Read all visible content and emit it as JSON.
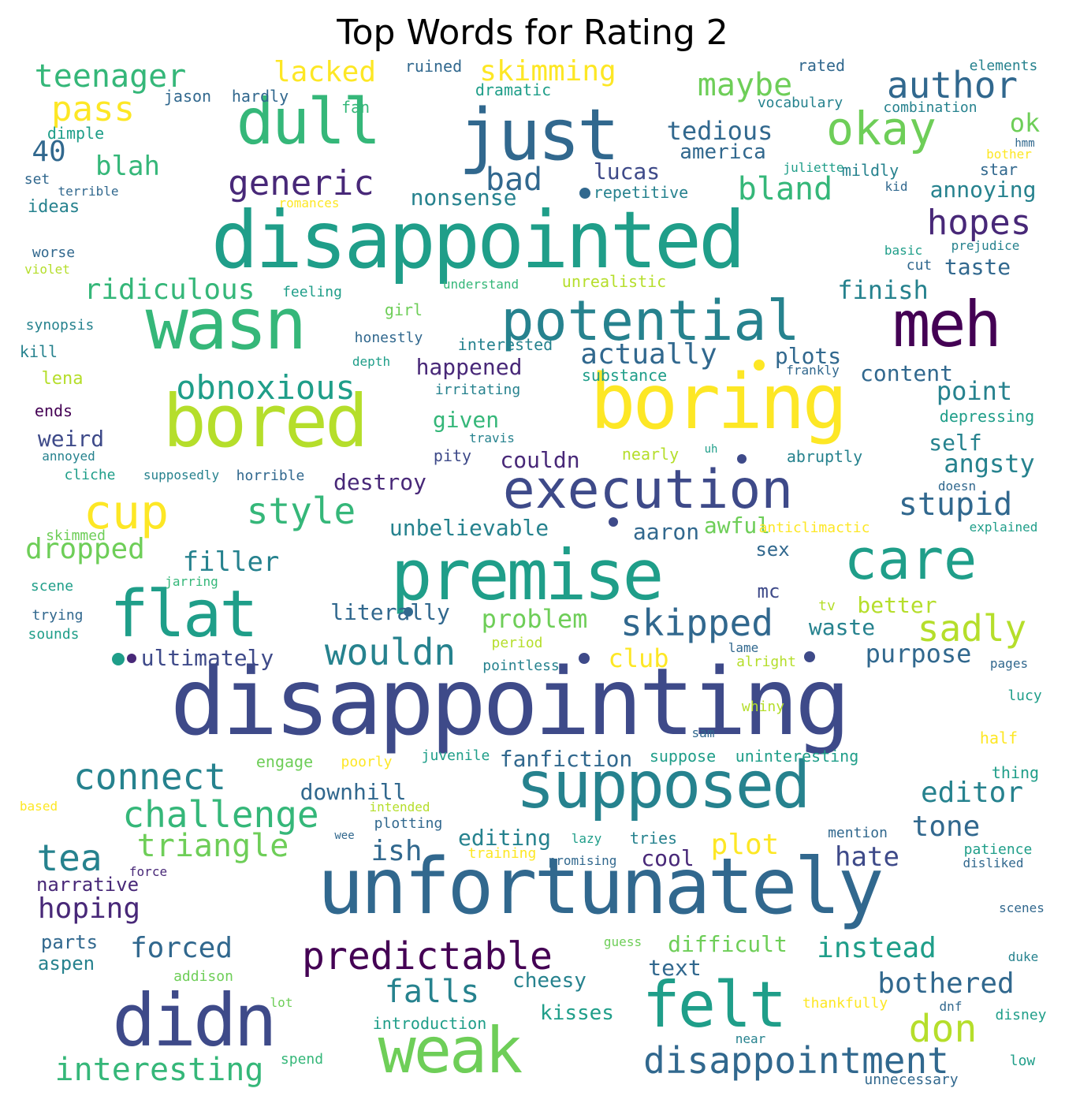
{
  "title": "Top Words for Rating 2",
  "colors": {
    "p1": "#440154",
    "p2": "#482878",
    "p3": "#3e4a89",
    "p4": "#31688e",
    "p5": "#26828e",
    "p6": "#1f9e89",
    "p7": "#35b779",
    "p8": "#6ece58",
    "p9": "#b5de2b",
    "p10": "#fde725",
    "bg": "#ffffff"
  },
  "words": [
    {
      "t": "disappointing",
      "c": "p3"
    },
    {
      "t": "disappointed",
      "c": "p6"
    },
    {
      "t": "unfortunately",
      "c": "p4"
    },
    {
      "t": "boring",
      "c": "p10"
    },
    {
      "t": "bored",
      "c": "p9"
    },
    {
      "t": "just",
      "c": "p4"
    },
    {
      "t": "dull",
      "c": "p7"
    },
    {
      "t": "wasn",
      "c": "p7"
    },
    {
      "t": "meh",
      "c": "p1"
    },
    {
      "t": "premise",
      "c": "p6"
    },
    {
      "t": "care",
      "c": "p6"
    },
    {
      "t": "flat",
      "c": "p6"
    },
    {
      "t": "didn",
      "c": "p3"
    },
    {
      "t": "felt",
      "c": "p6"
    },
    {
      "t": "weak",
      "c": "p8"
    },
    {
      "t": "supposed",
      "c": "p5"
    },
    {
      "t": "execution",
      "c": "p3"
    },
    {
      "t": "potential",
      "c": "p5"
    },
    {
      "t": "okay",
      "c": "p8"
    },
    {
      "t": "cup",
      "c": "p10"
    },
    {
      "t": "predictable",
      "c": "p1"
    },
    {
      "t": "disappointment",
      "c": "p4"
    },
    {
      "t": "author",
      "c": "p4"
    },
    {
      "t": "maybe",
      "c": "p8"
    },
    {
      "t": "pass",
      "c": "p10"
    },
    {
      "t": "generic",
      "c": "p2"
    },
    {
      "t": "bland",
      "c": "p7"
    },
    {
      "t": "hopes",
      "c": "p2"
    },
    {
      "t": "obnoxious",
      "c": "p6"
    },
    {
      "t": "style",
      "c": "p7"
    },
    {
      "t": "stupid",
      "c": "p4"
    },
    {
      "t": "skipped",
      "c": "p4"
    },
    {
      "t": "wouldn",
      "c": "p5"
    },
    {
      "t": "sadly",
      "c": "p9"
    },
    {
      "t": "challenge",
      "c": "p7"
    },
    {
      "t": "connect",
      "c": "p5"
    },
    {
      "t": "tea",
      "c": "p5"
    },
    {
      "t": "triangle",
      "c": "p8"
    },
    {
      "t": "falls",
      "c": "p5"
    },
    {
      "t": "don",
      "c": "p9"
    },
    {
      "t": "interesting",
      "c": "p7"
    },
    {
      "t": "bothered",
      "c": "p4"
    },
    {
      "t": "instead",
      "c": "p6"
    },
    {
      "t": "forced",
      "c": "p4"
    },
    {
      "t": "hoping",
      "c": "p2"
    },
    {
      "t": "ish",
      "c": "p4"
    },
    {
      "t": "plot",
      "c": "p10"
    },
    {
      "t": "editor",
      "c": "p5"
    },
    {
      "t": "tone",
      "c": "p4"
    },
    {
      "t": "hate",
      "c": "p3"
    },
    {
      "t": "teenager",
      "c": "p7"
    },
    {
      "t": "lacked",
      "c": "p10"
    },
    {
      "t": "skimming",
      "c": "p10"
    },
    {
      "t": "tedious",
      "c": "p4"
    },
    {
      "t": "ok",
      "c": "p8"
    },
    {
      "t": "40",
      "c": "p4"
    },
    {
      "t": "blah",
      "c": "p7"
    },
    {
      "t": "bad",
      "c": "p4"
    },
    {
      "t": "america",
      "c": "p4"
    },
    {
      "t": "lucas",
      "c": "p3"
    },
    {
      "t": "annoying",
      "c": "p5"
    },
    {
      "t": "nonsense",
      "c": "p5"
    },
    {
      "t": "ridiculous",
      "c": "p7"
    },
    {
      "t": "finish",
      "c": "p5"
    },
    {
      "t": "taste",
      "c": "p4"
    },
    {
      "t": "actually",
      "c": "p4"
    },
    {
      "t": "plots",
      "c": "p4"
    },
    {
      "t": "happened",
      "c": "p2"
    },
    {
      "t": "content",
      "c": "p4"
    },
    {
      "t": "point",
      "c": "p5"
    },
    {
      "t": "angsty",
      "c": "p5"
    },
    {
      "t": "self",
      "c": "p5"
    },
    {
      "t": "weird",
      "c": "p3"
    },
    {
      "t": "given",
      "c": "p7"
    },
    {
      "t": "couldn",
      "c": "p2"
    },
    {
      "t": "destroy",
      "c": "p2"
    },
    {
      "t": "dropped",
      "c": "p8"
    },
    {
      "t": "filler",
      "c": "p5"
    },
    {
      "t": "unbelievable",
      "c": "p5"
    },
    {
      "t": "aaron",
      "c": "p4"
    },
    {
      "t": "awful",
      "c": "p8"
    },
    {
      "t": "problem",
      "c": "p8"
    },
    {
      "t": "literally",
      "c": "p4"
    },
    {
      "t": "better",
      "c": "p9"
    },
    {
      "t": "waste",
      "c": "p5"
    },
    {
      "t": "purpose",
      "c": "p4"
    },
    {
      "t": "club",
      "c": "p10"
    },
    {
      "t": "ultimately",
      "c": "p3"
    },
    {
      "t": "downhill",
      "c": "p4"
    },
    {
      "t": "editing",
      "c": "p5"
    },
    {
      "t": "cool",
      "c": "p2"
    },
    {
      "t": "fanfiction",
      "c": "p4"
    },
    {
      "t": "difficult",
      "c": "p8"
    },
    {
      "t": "text",
      "c": "p4"
    },
    {
      "t": "cheesy",
      "c": "p5"
    },
    {
      "t": "kisses",
      "c": "p6"
    },
    {
      "t": "parts",
      "c": "p4"
    },
    {
      "t": "aspen",
      "c": "p5"
    },
    {
      "t": "narrative",
      "c": "p2"
    },
    {
      "t": "sex",
      "c": "p4"
    },
    {
      "t": "mc",
      "c": "p3"
    },
    {
      "t": "jason",
      "c": "p4"
    },
    {
      "t": "hardly",
      "c": "p4"
    },
    {
      "t": "fan",
      "c": "p7"
    },
    {
      "t": "ruined",
      "c": "p4"
    },
    {
      "t": "dramatic",
      "c": "p6"
    },
    {
      "t": "rated",
      "c": "p4"
    },
    {
      "t": "elements",
      "c": "p5"
    },
    {
      "t": "vocabulary",
      "c": "p5"
    },
    {
      "t": "combination",
      "c": "p5"
    },
    {
      "t": "dimple",
      "c": "p6"
    },
    {
      "t": "set",
      "c": "p4"
    },
    {
      "t": "terrible",
      "c": "p4"
    },
    {
      "t": "ideas",
      "c": "p5"
    },
    {
      "t": "romances",
      "c": "p10"
    },
    {
      "t": "repetitive",
      "c": "p5"
    },
    {
      "t": "juliette",
      "c": "p6"
    },
    {
      "t": "mildly",
      "c": "p5"
    },
    {
      "t": "star",
      "c": "p4"
    },
    {
      "t": "kid",
      "c": "p4"
    },
    {
      "t": "bother",
      "c": "p10"
    },
    {
      "t": "hmm",
      "c": "p4"
    },
    {
      "t": "prejudice",
      "c": "p5"
    },
    {
      "t": "basic",
      "c": "p6"
    },
    {
      "t": "cut",
      "c": "p4"
    },
    {
      "t": "worse",
      "c": "p4"
    },
    {
      "t": "violet",
      "c": "p9"
    },
    {
      "t": "feeling",
      "c": "p6"
    },
    {
      "t": "understand",
      "c": "p7"
    },
    {
      "t": "unrealistic",
      "c": "p9"
    },
    {
      "t": "girl",
      "c": "p8"
    },
    {
      "t": "synopsis",
      "c": "p5"
    },
    {
      "t": "kill",
      "c": "p5"
    },
    {
      "t": "honestly",
      "c": "p4"
    },
    {
      "t": "interested",
      "c": "p5"
    },
    {
      "t": "depth",
      "c": "p6"
    },
    {
      "t": "substance",
      "c": "p6"
    },
    {
      "t": "frankly",
      "c": "p4"
    },
    {
      "t": "lena",
      "c": "p9"
    },
    {
      "t": "irritating",
      "c": "p5"
    },
    {
      "t": "ends",
      "c": "p1"
    },
    {
      "t": "depressing",
      "c": "p6"
    },
    {
      "t": "travis",
      "c": "p5"
    },
    {
      "t": "annoyed",
      "c": "p5"
    },
    {
      "t": "nearly",
      "c": "p9"
    },
    {
      "t": "uh",
      "c": "p6"
    },
    {
      "t": "pity",
      "c": "p3"
    },
    {
      "t": "abruptly",
      "c": "p5"
    },
    {
      "t": "cliche",
      "c": "p6"
    },
    {
      "t": "supposedly",
      "c": "p5"
    },
    {
      "t": "horrible",
      "c": "p4"
    },
    {
      "t": "doesn",
      "c": "p4"
    },
    {
      "t": "skimmed",
      "c": "p8"
    },
    {
      "t": "anticlimactic",
      "c": "p10"
    },
    {
      "t": "explained",
      "c": "p6"
    },
    {
      "t": "scene",
      "c": "p6"
    },
    {
      "t": "jarring",
      "c": "p7"
    },
    {
      "t": "trying",
      "c": "p4"
    },
    {
      "t": "sounds",
      "c": "p6"
    },
    {
      "t": "tv",
      "c": "p9"
    },
    {
      "t": "period",
      "c": "p9"
    },
    {
      "t": "lame",
      "c": "p4"
    },
    {
      "t": "alright",
      "c": "p9"
    },
    {
      "t": "pages",
      "c": "p4"
    },
    {
      "t": "pointless",
      "c": "p5"
    },
    {
      "t": "lucy",
      "c": "p6"
    },
    {
      "t": "whiny",
      "c": "p9"
    },
    {
      "t": "sam",
      "c": "p4"
    },
    {
      "t": "half",
      "c": "p10"
    },
    {
      "t": "engage",
      "c": "p8"
    },
    {
      "t": "poorly",
      "c": "p10"
    },
    {
      "t": "juvenile",
      "c": "p6"
    },
    {
      "t": "suppose",
      "c": "p6"
    },
    {
      "t": "uninteresting",
      "c": "p6"
    },
    {
      "t": "thing",
      "c": "p6"
    },
    {
      "t": "based",
      "c": "p10"
    },
    {
      "t": "intended",
      "c": "p9"
    },
    {
      "t": "plotting",
      "c": "p4"
    },
    {
      "t": "wee",
      "c": "p4"
    },
    {
      "t": "mention",
      "c": "p4"
    },
    {
      "t": "lazy",
      "c": "p6"
    },
    {
      "t": "tries",
      "c": "p5"
    },
    {
      "t": "training",
      "c": "p10"
    },
    {
      "t": "force",
      "c": "p2"
    },
    {
      "t": "promising",
      "c": "p4"
    },
    {
      "t": "patience",
      "c": "p6"
    },
    {
      "t": "disliked",
      "c": "p4"
    },
    {
      "t": "scenes",
      "c": "p4"
    },
    {
      "t": "guess",
      "c": "p8"
    },
    {
      "t": "duke",
      "c": "p5"
    },
    {
      "t": "addison",
      "c": "p8"
    },
    {
      "t": "lot",
      "c": "p8"
    },
    {
      "t": "thankfully",
      "c": "p10"
    },
    {
      "t": "dnf",
      "c": "p4"
    },
    {
      "t": "introduction",
      "c": "p6"
    },
    {
      "t": "disney",
      "c": "p6"
    },
    {
      "t": "spend",
      "c": "p7"
    },
    {
      "t": "near",
      "c": "p5"
    },
    {
      "t": "low",
      "c": "p6"
    },
    {
      "t": "unnecessary",
      "c": "p4"
    }
  ],
  "dots": [
    "p6",
    "p4",
    "p10",
    "p3",
    "p3",
    "p2",
    "p3",
    "p3",
    "p4"
  ]
}
